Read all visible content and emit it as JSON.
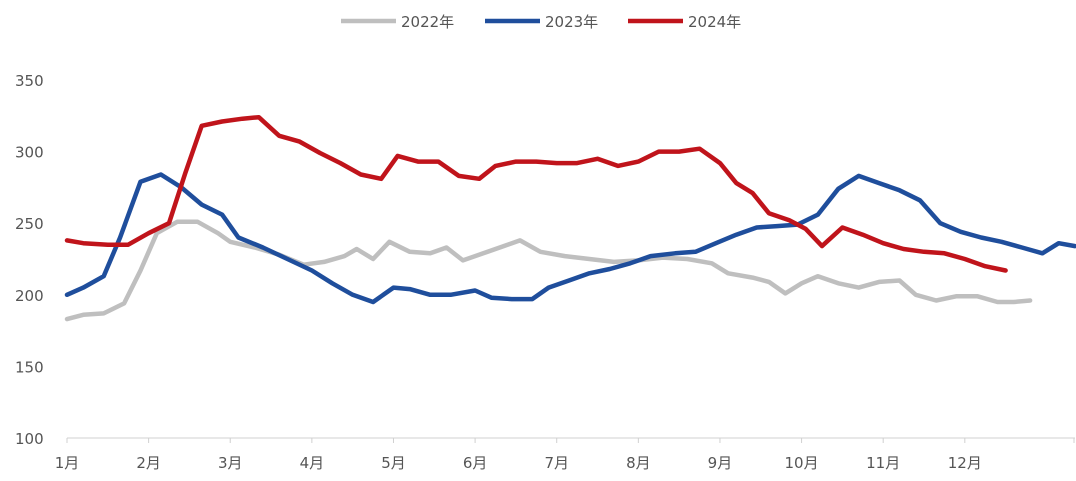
{
  "chart_data": {
    "type": "line",
    "title": "",
    "xlabel": "",
    "ylabel": "",
    "ylim": [
      100,
      350
    ],
    "y_ticks": [
      100,
      150,
      200,
      250,
      300,
      350
    ],
    "x_ticks": [
      "1月",
      "2月",
      "3月",
      "4月",
      "5月",
      "6月",
      "7月",
      "8月",
      "9月",
      "10月",
      "11月",
      "12月"
    ],
    "x_range": [
      1,
      12.8
    ],
    "grid": false,
    "legend_position": "top-center",
    "series": [
      {
        "name": "2022年",
        "color": "#bfbfbf",
        "points": [
          [
            1.0,
            183
          ],
          [
            1.2,
            186
          ],
          [
            1.45,
            187
          ],
          [
            1.7,
            194
          ],
          [
            1.9,
            217
          ],
          [
            2.1,
            243
          ],
          [
            2.35,
            251
          ],
          [
            2.6,
            251
          ],
          [
            2.85,
            243
          ],
          [
            3.0,
            237
          ],
          [
            3.3,
            233
          ],
          [
            3.6,
            228
          ],
          [
            3.9,
            221
          ],
          [
            4.15,
            223
          ],
          [
            4.4,
            227
          ],
          [
            4.55,
            232
          ],
          [
            4.75,
            225
          ],
          [
            4.95,
            237
          ],
          [
            5.2,
            230
          ],
          [
            5.45,
            229
          ],
          [
            5.65,
            233
          ],
          [
            5.85,
            224
          ],
          [
            6.1,
            229
          ],
          [
            6.35,
            234
          ],
          [
            6.55,
            238
          ],
          [
            6.8,
            230
          ],
          [
            7.1,
            227
          ],
          [
            7.4,
            225
          ],
          [
            7.7,
            223
          ],
          [
            8.0,
            224
          ],
          [
            8.3,
            226
          ],
          [
            8.6,
            225
          ],
          [
            8.9,
            222
          ],
          [
            9.1,
            215
          ],
          [
            9.4,
            212
          ],
          [
            9.6,
            209
          ],
          [
            9.8,
            201
          ],
          [
            10.0,
            208
          ],
          [
            10.2,
            213
          ],
          [
            10.45,
            208
          ],
          [
            10.7,
            205
          ],
          [
            10.95,
            209
          ],
          [
            11.2,
            210
          ],
          [
            11.4,
            200
          ],
          [
            11.65,
            196
          ],
          [
            11.9,
            199
          ],
          [
            12.15,
            199
          ],
          [
            12.4,
            195
          ],
          [
            12.6,
            195
          ],
          [
            12.8,
            196
          ]
        ]
      },
      {
        "name": "2023年",
        "color": "#1f4e9c",
        "points": [
          [
            1.0,
            200
          ],
          [
            1.2,
            205
          ],
          [
            1.45,
            213
          ],
          [
            1.65,
            240
          ],
          [
            1.9,
            279
          ],
          [
            2.15,
            284
          ],
          [
            2.4,
            275
          ],
          [
            2.65,
            263
          ],
          [
            2.9,
            256
          ],
          [
            3.1,
            240
          ],
          [
            3.4,
            233
          ],
          [
            3.7,
            225
          ],
          [
            4.0,
            217
          ],
          [
            4.25,
            208
          ],
          [
            4.5,
            200
          ],
          [
            4.75,
            195
          ],
          [
            5.0,
            205
          ],
          [
            5.2,
            204
          ],
          [
            5.45,
            200
          ],
          [
            5.7,
            200
          ],
          [
            6.0,
            203
          ],
          [
            6.2,
            198
          ],
          [
            6.45,
            197
          ],
          [
            6.7,
            197
          ],
          [
            6.9,
            205
          ],
          [
            7.15,
            210
          ],
          [
            7.4,
            215
          ],
          [
            7.65,
            218
          ],
          [
            7.9,
            222
          ],
          [
            8.15,
            227
          ],
          [
            8.45,
            229
          ],
          [
            8.7,
            230
          ],
          [
            8.95,
            236
          ],
          [
            9.2,
            242
          ],
          [
            9.45,
            247
          ],
          [
            9.7,
            248
          ],
          [
            9.95,
            249
          ],
          [
            10.2,
            256
          ],
          [
            10.45,
            274
          ],
          [
            10.7,
            283
          ],
          [
            10.95,
            278
          ],
          [
            11.2,
            273
          ],
          [
            11.45,
            266
          ],
          [
            11.7,
            250
          ],
          [
            11.95,
            244
          ],
          [
            12.2,
            240
          ],
          [
            12.45,
            237
          ],
          [
            12.7,
            233
          ],
          [
            12.95,
            229
          ],
          [
            13.15,
            236
          ],
          [
            13.35,
            234
          ]
        ]
      },
      {
        "name": "2024年",
        "color": "#c0141b",
        "points": [
          [
            1.0,
            238
          ],
          [
            1.2,
            236
          ],
          [
            1.5,
            235
          ],
          [
            1.75,
            235
          ],
          [
            2.0,
            243
          ],
          [
            2.25,
            250
          ],
          [
            2.45,
            285
          ],
          [
            2.65,
            318
          ],
          [
            2.9,
            321
          ],
          [
            3.15,
            323
          ],
          [
            3.35,
            324
          ],
          [
            3.6,
            311
          ],
          [
            3.85,
            307
          ],
          [
            4.1,
            299
          ],
          [
            4.35,
            292
          ],
          [
            4.6,
            284
          ],
          [
            4.85,
            281
          ],
          [
            5.05,
            297
          ],
          [
            5.3,
            293
          ],
          [
            5.55,
            293
          ],
          [
            5.8,
            283
          ],
          [
            6.05,
            281
          ],
          [
            6.25,
            290
          ],
          [
            6.5,
            293
          ],
          [
            6.75,
            293
          ],
          [
            7.0,
            292
          ],
          [
            7.25,
            292
          ],
          [
            7.5,
            295
          ],
          [
            7.75,
            290
          ],
          [
            8.0,
            293
          ],
          [
            8.25,
            300
          ],
          [
            8.5,
            300
          ],
          [
            8.75,
            302
          ],
          [
            9.0,
            292
          ],
          [
            9.2,
            278
          ],
          [
            9.4,
            271
          ],
          [
            9.6,
            257
          ],
          [
            9.85,
            252
          ],
          [
            10.05,
            246
          ],
          [
            10.25,
            234
          ],
          [
            10.5,
            247
          ],
          [
            10.75,
            242
          ],
          [
            11.0,
            236
          ],
          [
            11.25,
            232
          ],
          [
            11.5,
            230
          ],
          [
            11.75,
            229
          ],
          [
            12.0,
            225
          ],
          [
            12.25,
            220
          ],
          [
            12.5,
            217
          ]
        ]
      }
    ]
  }
}
